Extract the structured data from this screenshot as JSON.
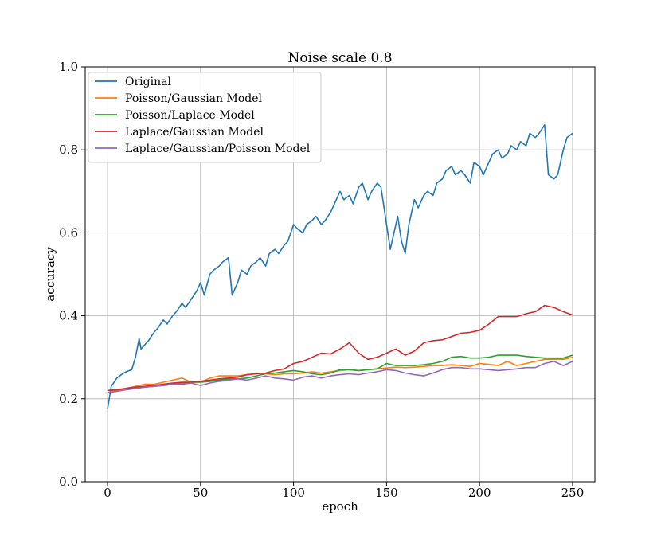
{
  "chart_data": {
    "type": "line",
    "title": "Noise scale 0.8",
    "xlabel": "epoch",
    "ylabel": "accuracy",
    "xlim": [
      -12,
      262
    ],
    "ylim": [
      0.0,
      1.0
    ],
    "xticks": [
      0,
      50,
      100,
      150,
      200,
      250
    ],
    "yticks": [
      0.0,
      0.2,
      0.4,
      0.6,
      0.8,
      1.0
    ],
    "xtick_labels": [
      "0",
      "50",
      "100",
      "150",
      "200",
      "250"
    ],
    "ytick_labels": [
      "0.0",
      "0.2",
      "0.4",
      "0.6",
      "0.8",
      "1.0"
    ],
    "grid": true,
    "legend_position": "top-left",
    "series": [
      {
        "name": "Original",
        "color": "#1f77b4",
        "x": [
          0,
          2,
          5,
          8,
          10,
          13,
          15,
          17,
          18,
          20,
          22,
          25,
          27,
          30,
          32,
          35,
          37,
          40,
          42,
          45,
          48,
          50,
          52,
          55,
          57,
          60,
          62,
          65,
          67,
          70,
          72,
          75,
          77,
          80,
          82,
          85,
          87,
          90,
          92,
          95,
          97,
          100,
          102,
          105,
          107,
          110,
          112,
          115,
          117,
          120,
          122,
          125,
          127,
          130,
          132,
          135,
          137,
          140,
          142,
          145,
          147,
          150,
          152,
          154,
          156,
          158,
          160,
          162,
          165,
          167,
          170,
          172,
          175,
          177,
          180,
          182,
          185,
          187,
          190,
          192,
          195,
          197,
          200,
          202,
          205,
          207,
          210,
          212,
          215,
          217,
          220,
          222,
          225,
          227,
          230,
          232,
          235,
          237,
          240,
          242,
          245,
          247,
          250
        ],
        "y": [
          0.175,
          0.23,
          0.25,
          0.26,
          0.265,
          0.27,
          0.3,
          0.345,
          0.32,
          0.33,
          0.34,
          0.36,
          0.37,
          0.39,
          0.38,
          0.4,
          0.41,
          0.43,
          0.42,
          0.44,
          0.46,
          0.48,
          0.45,
          0.5,
          0.51,
          0.52,
          0.53,
          0.54,
          0.45,
          0.48,
          0.51,
          0.5,
          0.52,
          0.53,
          0.54,
          0.52,
          0.55,
          0.56,
          0.55,
          0.57,
          0.58,
          0.62,
          0.61,
          0.6,
          0.62,
          0.63,
          0.64,
          0.62,
          0.63,
          0.65,
          0.67,
          0.7,
          0.68,
          0.69,
          0.67,
          0.71,
          0.72,
          0.68,
          0.7,
          0.72,
          0.71,
          0.62,
          0.56,
          0.6,
          0.64,
          0.58,
          0.55,
          0.62,
          0.68,
          0.66,
          0.69,
          0.7,
          0.69,
          0.72,
          0.73,
          0.75,
          0.76,
          0.74,
          0.75,
          0.74,
          0.72,
          0.77,
          0.76,
          0.74,
          0.77,
          0.79,
          0.8,
          0.78,
          0.79,
          0.81,
          0.8,
          0.82,
          0.81,
          0.84,
          0.83,
          0.84,
          0.86,
          0.74,
          0.73,
          0.74,
          0.8,
          0.83,
          0.84
        ]
      },
      {
        "name": "Poisson/Gaussian Model",
        "color": "#ff7f0e",
        "x": [
          0,
          5,
          10,
          15,
          20,
          25,
          30,
          35,
          40,
          45,
          50,
          55,
          60,
          65,
          70,
          75,
          80,
          85,
          90,
          95,
          100,
          105,
          110,
          115,
          120,
          125,
          130,
          135,
          140,
          145,
          150,
          155,
          160,
          165,
          170,
          175,
          180,
          185,
          190,
          195,
          200,
          205,
          210,
          215,
          220,
          225,
          230,
          235,
          240,
          245,
          250
        ],
        "y": [
          0.22,
          0.22,
          0.225,
          0.23,
          0.235,
          0.235,
          0.24,
          0.245,
          0.25,
          0.24,
          0.24,
          0.25,
          0.255,
          0.255,
          0.255,
          0.258,
          0.26,
          0.26,
          0.258,
          0.26,
          0.26,
          0.262,
          0.265,
          0.262,
          0.265,
          0.268,
          0.27,
          0.268,
          0.27,
          0.272,
          0.274,
          0.276,
          0.275,
          0.276,
          0.278,
          0.28,
          0.28,
          0.282,
          0.28,
          0.278,
          0.285,
          0.283,
          0.28,
          0.29,
          0.28,
          0.285,
          0.29,
          0.295,
          0.295,
          0.295,
          0.3
        ]
      },
      {
        "name": "Poisson/Laplace Model",
        "color": "#2ca02c",
        "x": [
          0,
          5,
          10,
          15,
          20,
          25,
          30,
          35,
          40,
          45,
          50,
          55,
          60,
          65,
          70,
          75,
          80,
          85,
          90,
          95,
          100,
          105,
          110,
          115,
          120,
          125,
          130,
          135,
          140,
          145,
          150,
          155,
          160,
          165,
          170,
          175,
          180,
          185,
          190,
          195,
          200,
          205,
          210,
          215,
          220,
          225,
          230,
          235,
          240,
          245,
          250
        ],
        "y": [
          0.215,
          0.218,
          0.222,
          0.225,
          0.228,
          0.23,
          0.232,
          0.235,
          0.238,
          0.24,
          0.24,
          0.242,
          0.245,
          0.248,
          0.248,
          0.25,
          0.255,
          0.26,
          0.262,
          0.265,
          0.268,
          0.265,
          0.26,
          0.258,
          0.262,
          0.27,
          0.27,
          0.268,
          0.27,
          0.272,
          0.285,
          0.28,
          0.28,
          0.28,
          0.282,
          0.285,
          0.29,
          0.3,
          0.302,
          0.298,
          0.298,
          0.3,
          0.305,
          0.305,
          0.305,
          0.302,
          0.3,
          0.298,
          0.298,
          0.298,
          0.305
        ]
      },
      {
        "name": "Laplace/Gaussian Model",
        "color": "#d62728",
        "x": [
          0,
          5,
          10,
          15,
          20,
          25,
          30,
          35,
          40,
          45,
          50,
          55,
          60,
          65,
          70,
          75,
          80,
          85,
          90,
          95,
          100,
          105,
          110,
          115,
          120,
          125,
          130,
          135,
          140,
          145,
          150,
          155,
          160,
          165,
          170,
          175,
          180,
          185,
          190,
          195,
          200,
          205,
          210,
          215,
          220,
          225,
          230,
          235,
          240,
          245,
          250
        ],
        "y": [
          0.22,
          0.222,
          0.225,
          0.228,
          0.23,
          0.232,
          0.235,
          0.238,
          0.24,
          0.24,
          0.242,
          0.245,
          0.248,
          0.25,
          0.252,
          0.258,
          0.26,
          0.262,
          0.268,
          0.272,
          0.285,
          0.29,
          0.3,
          0.31,
          0.308,
          0.32,
          0.335,
          0.31,
          0.295,
          0.3,
          0.31,
          0.32,
          0.305,
          0.315,
          0.335,
          0.34,
          0.342,
          0.35,
          0.358,
          0.36,
          0.365,
          0.38,
          0.398,
          0.398,
          0.398,
          0.405,
          0.41,
          0.425,
          0.42,
          0.41,
          0.402
        ]
      },
      {
        "name": "Laplace/Gaussian/Poisson Model",
        "color": "#9467bd",
        "x": [
          0,
          5,
          10,
          15,
          20,
          25,
          30,
          35,
          40,
          45,
          50,
          55,
          60,
          65,
          70,
          75,
          80,
          85,
          90,
          95,
          100,
          105,
          110,
          115,
          120,
          125,
          130,
          135,
          140,
          145,
          150,
          155,
          160,
          165,
          170,
          175,
          180,
          185,
          190,
          195,
          200,
          205,
          210,
          215,
          220,
          225,
          230,
          235,
          240,
          245,
          250
        ],
        "y": [
          0.215,
          0.218,
          0.222,
          0.225,
          0.228,
          0.23,
          0.232,
          0.235,
          0.235,
          0.238,
          0.232,
          0.238,
          0.242,
          0.245,
          0.248,
          0.245,
          0.25,
          0.255,
          0.25,
          0.248,
          0.245,
          0.252,
          0.255,
          0.25,
          0.255,
          0.258,
          0.26,
          0.258,
          0.262,
          0.265,
          0.27,
          0.268,
          0.262,
          0.258,
          0.255,
          0.262,
          0.27,
          0.275,
          0.275,
          0.272,
          0.272,
          0.27,
          0.268,
          0.27,
          0.272,
          0.275,
          0.275,
          0.285,
          0.29,
          0.28,
          0.29
        ]
      }
    ]
  }
}
